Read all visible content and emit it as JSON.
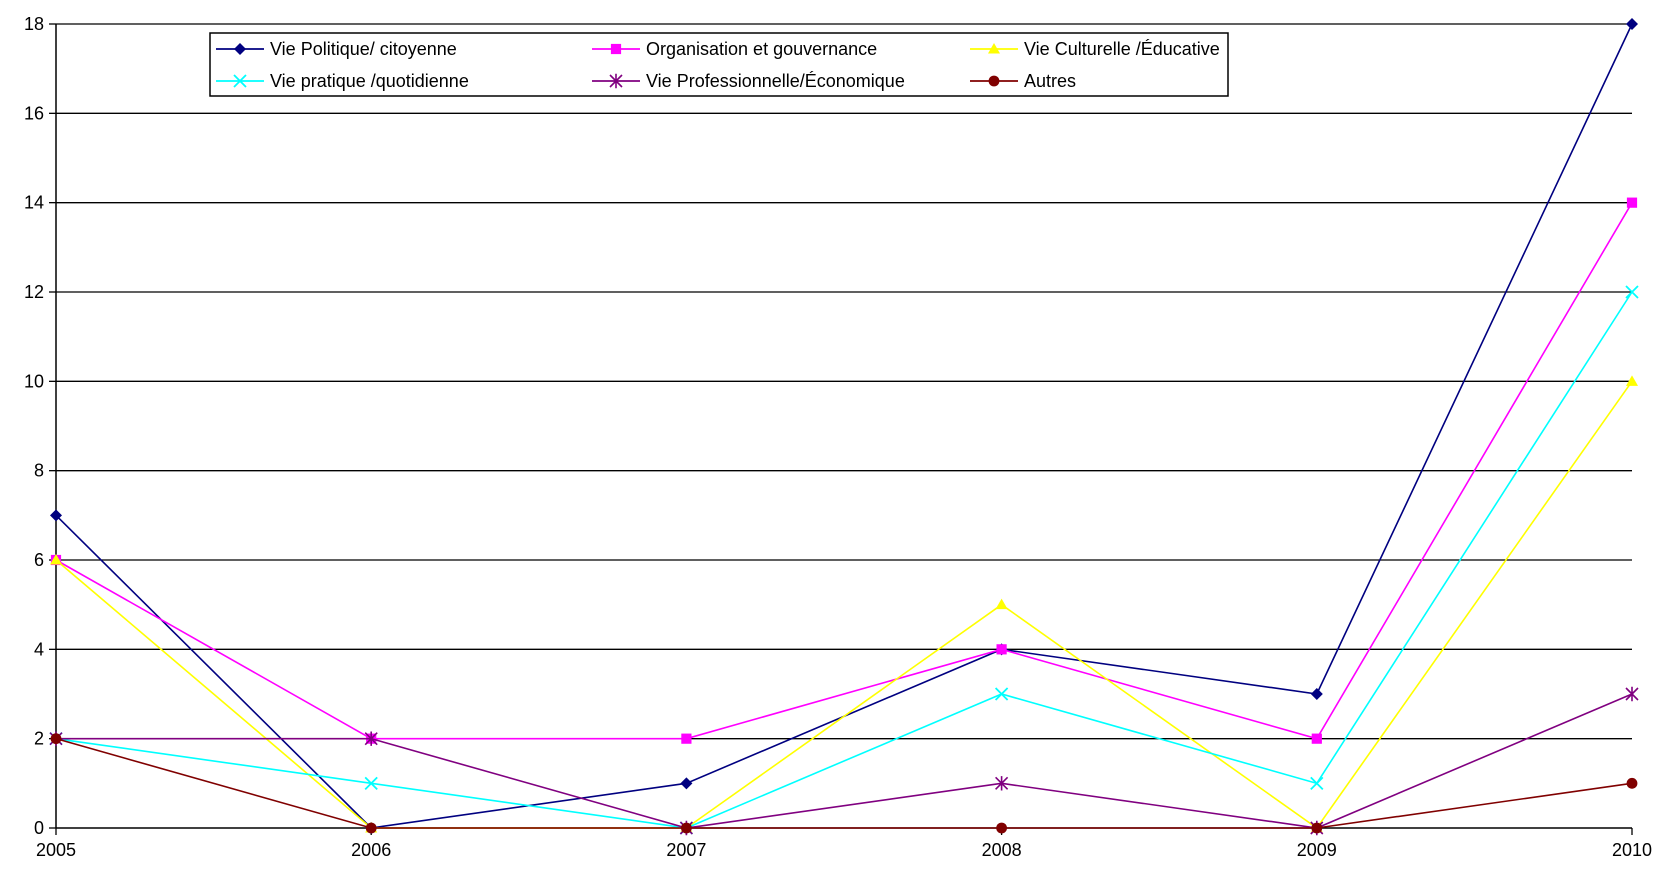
{
  "chart_data": {
    "type": "line",
    "title": "",
    "xlabel": "",
    "ylabel": "",
    "x": [
      "2005",
      "2006",
      "2007",
      "2008",
      "2009",
      "2010"
    ],
    "ylim": [
      0,
      18
    ],
    "yticks": [
      "0",
      "2",
      "4",
      "6",
      "8",
      "10",
      "12",
      "14",
      "16",
      "18"
    ],
    "grid": "horizontal",
    "legend_position": "top-left, inside plot, boxed, 3 columns",
    "series": [
      {
        "name": "Vie Politique/ citoyenne",
        "values": [
          7,
          0,
          1,
          4,
          3,
          18
        ],
        "color": "#000080",
        "marker": "diamond"
      },
      {
        "name": "Organisation et gouvernance",
        "values": [
          6,
          2,
          2,
          4,
          2,
          14
        ],
        "color": "#ff00ff",
        "marker": "square"
      },
      {
        "name": "Vie Culturelle /Éducative",
        "values": [
          6,
          0,
          0,
          5,
          0,
          10
        ],
        "color": "#ffff00",
        "marker": "triangle"
      },
      {
        "name": "Vie pratique /quotidienne",
        "values": [
          2,
          1,
          0,
          3,
          1,
          12
        ],
        "color": "#00ffff",
        "marker": "x"
      },
      {
        "name": "Vie Professionnelle/Économique",
        "values": [
          2,
          2,
          0,
          1,
          0,
          3
        ],
        "color": "#800080",
        "marker": "star"
      },
      {
        "name": "Autres",
        "values": [
          2,
          0,
          0,
          0,
          0,
          1
        ],
        "color": "#800000",
        "marker": "circle"
      }
    ]
  }
}
